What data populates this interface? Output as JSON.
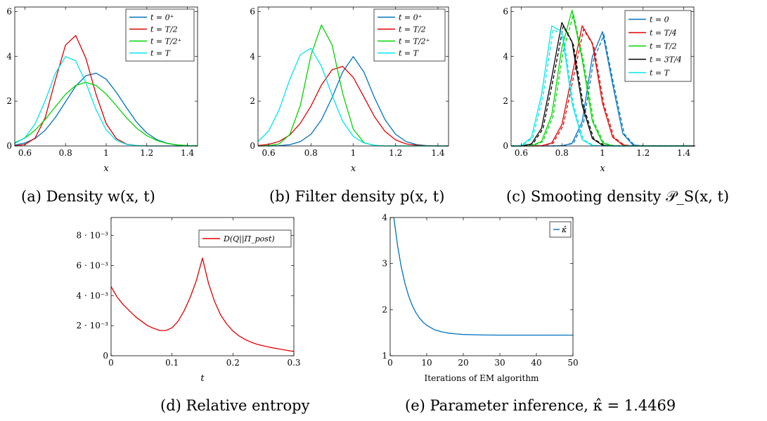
{
  "figure": {
    "captions": [
      "(a) Density w(x, t)",
      "(b) Filter density p(x, t)",
      "(c) Smooting density 𝒫_S(x, t)",
      "(d) Relative entropy",
      "(e) Parameter inference, κ̂ = 1.4469"
    ]
  },
  "chart_data": [
    {
      "type": "line",
      "caption": "(a) Density w(x, t)",
      "xlabel": "x",
      "ylabel": "",
      "xlim": [
        0.55,
        1.45
      ],
      "ylim": [
        0,
        6.2
      ],
      "xticks": [
        "0.6",
        "0.8",
        "1",
        "1.2",
        "1.4"
      ],
      "yticks": [
        "0",
        "2",
        "4",
        "6"
      ],
      "legend_position": "top-right",
      "series": [
        {
          "name": "t = 0⁺",
          "color": "#0072bd",
          "x": [
            0.55,
            0.6,
            0.65,
            0.7,
            0.75,
            0.8,
            0.85,
            0.9,
            0.95,
            1.0,
            1.05,
            1.1,
            1.15,
            1.2,
            1.25,
            1.3,
            1.35,
            1.4,
            1.45
          ],
          "y": [
            0.04,
            0.13,
            0.33,
            0.7,
            1.27,
            1.97,
            2.67,
            3.13,
            3.25,
            2.98,
            2.4,
            1.71,
            1.06,
            0.58,
            0.28,
            0.12,
            0.04,
            0.01,
            0.0
          ]
        },
        {
          "name": "t = T/2",
          "color": "#e00000",
          "x": [
            0.55,
            0.6,
            0.65,
            0.7,
            0.75,
            0.8,
            0.85,
            0.9,
            0.95,
            1.0,
            1.05,
            1.1,
            1.15,
            1.2,
            1.25,
            1.3,
            1.35,
            1.4,
            1.45
          ],
          "y": [
            0.01,
            0.06,
            0.35,
            1.26,
            2.94,
            4.5,
            4.93,
            3.92,
            2.3,
            1.0,
            0.33,
            0.08,
            0.02,
            0.0,
            0.0,
            0.0,
            0.0,
            0.0,
            0.0
          ]
        },
        {
          "name": "t = T/2⁺",
          "color": "#00d400",
          "x": [
            0.55,
            0.6,
            0.65,
            0.7,
            0.75,
            0.8,
            0.85,
            0.9,
            0.95,
            1.0,
            1.05,
            1.1,
            1.15,
            1.2,
            1.25,
            1.3,
            1.35,
            1.4,
            1.45
          ],
          "y": [
            0.15,
            0.35,
            0.7,
            1.18,
            1.75,
            2.3,
            2.7,
            2.84,
            2.7,
            2.32,
            1.8,
            1.26,
            0.8,
            0.46,
            0.24,
            0.11,
            0.05,
            0.02,
            0.01
          ]
        },
        {
          "name": "t = T",
          "color": "#00e5ee",
          "x": [
            0.55,
            0.6,
            0.65,
            0.7,
            0.75,
            0.8,
            0.85,
            0.9,
            0.95,
            1.0,
            1.05,
            1.1,
            1.15,
            1.2,
            1.25,
            1.3,
            1.35,
            1.4,
            1.45
          ],
          "y": [
            0.11,
            0.37,
            0.98,
            2.02,
            3.24,
            3.99,
            3.8,
            2.82,
            1.62,
            0.72,
            0.25,
            0.07,
            0.02,
            0.0,
            0.0,
            0.0,
            0.0,
            0.0,
            0.0
          ]
        }
      ]
    },
    {
      "type": "line",
      "caption": "(b) Filter density p(x, t)",
      "xlabel": "x",
      "ylabel": "",
      "xlim": [
        0.55,
        1.45
      ],
      "ylim": [
        0,
        6.2
      ],
      "xticks": [
        "0.6",
        "0.8",
        "1",
        "1.2",
        "1.4"
      ],
      "yticks": [
        "0",
        "2",
        "4",
        "6"
      ],
      "legend_position": "top-right",
      "series": [
        {
          "name": "t = 0⁺",
          "color": "#0072bd",
          "x": [
            0.55,
            0.6,
            0.65,
            0.7,
            0.75,
            0.8,
            0.85,
            0.9,
            0.95,
            1.0,
            1.05,
            1.1,
            1.15,
            1.2,
            1.25,
            1.3,
            1.35,
            1.4,
            1.45
          ],
          "y": [
            0.0,
            0.0,
            0.01,
            0.06,
            0.19,
            0.52,
            1.17,
            2.16,
            3.3,
            3.99,
            3.3,
            2.16,
            1.17,
            0.52,
            0.19,
            0.06,
            0.01,
            0.0,
            0.0
          ]
        },
        {
          "name": "t = T/2",
          "color": "#e00000",
          "x": [
            0.55,
            0.6,
            0.65,
            0.7,
            0.75,
            0.8,
            0.85,
            0.9,
            0.95,
            1.0,
            1.05,
            1.1,
            1.15,
            1.2,
            1.25,
            1.3,
            1.35,
            1.4,
            1.45
          ],
          "y": [
            0.02,
            0.07,
            0.2,
            0.49,
            1.01,
            1.78,
            2.72,
            3.4,
            3.55,
            3.06,
            2.19,
            1.31,
            0.65,
            0.27,
            0.09,
            0.03,
            0.0,
            0.0,
            0.0
          ]
        },
        {
          "name": "t = T/2⁺",
          "color": "#00d400",
          "x": [
            0.55,
            0.6,
            0.65,
            0.7,
            0.75,
            0.8,
            0.85,
            0.9,
            0.95,
            1.0,
            1.05,
            1.1,
            1.15,
            1.2,
            1.25,
            1.3,
            1.35,
            1.4,
            1.45
          ],
          "y": [
            0.0,
            0.01,
            0.09,
            0.51,
            1.8,
            4.05,
            5.4,
            4.5,
            2.35,
            0.75,
            0.15,
            0.02,
            0.0,
            0.0,
            0.0,
            0.0,
            0.0,
            0.0,
            0.0
          ]
        },
        {
          "name": "t = T",
          "color": "#00e5ee",
          "x": [
            0.55,
            0.6,
            0.65,
            0.7,
            0.75,
            0.8,
            0.85,
            0.9,
            0.95,
            1.0,
            1.05,
            1.1,
            1.15,
            1.2,
            1.25,
            1.3,
            1.35,
            1.4,
            1.45
          ],
          "y": [
            0.2,
            0.66,
            1.62,
            2.97,
            4.07,
            4.36,
            3.55,
            2.26,
            1.1,
            0.43,
            0.13,
            0.03,
            0.0,
            0.0,
            0.0,
            0.0,
            0.0,
            0.0,
            0.0
          ]
        }
      ]
    },
    {
      "type": "line",
      "caption": "(c) Smooting density 𝒫_S(x, t)",
      "xlabel": "x",
      "ylabel": "",
      "xlim": [
        0.55,
        1.45
      ],
      "ylim": [
        0,
        6.2
      ],
      "xticks": [
        "0.6",
        "0.8",
        "1",
        "1.2",
        "1.4"
      ],
      "yticks": [
        "0",
        "2",
        "4",
        "6"
      ],
      "legend_position": "top-right",
      "note_dashed": "each series drawn twice: solid and dashed (nearly coincident)",
      "series": [
        {
          "name": "t = 0",
          "color": "#0072bd",
          "x": [
            0.55,
            0.6,
            0.65,
            0.7,
            0.75,
            0.8,
            0.85,
            0.9,
            0.95,
            1.0,
            1.05,
            1.1,
            1.15,
            1.2,
            1.25,
            1.3,
            1.35,
            1.4,
            1.45
          ],
          "y": [
            0.0,
            0.0,
            0.0,
            0.0,
            0.0,
            0.01,
            0.12,
            1.08,
            3.98,
            5.1,
            2.76,
            0.55,
            0.04,
            0.0,
            0.0,
            0.0,
            0.0,
            0.0,
            0.0
          ]
        },
        {
          "name": "t = T/4",
          "color": "#e00000",
          "x": [
            0.55,
            0.6,
            0.65,
            0.7,
            0.75,
            0.8,
            0.85,
            0.9,
            0.95,
            1.0,
            1.05,
            1.1,
            1.15,
            1.2,
            1.25,
            1.3,
            1.35,
            1.4,
            1.45
          ],
          "y": [
            0.0,
            0.0,
            0.0,
            0.01,
            0.13,
            0.95,
            3.16,
            5.36,
            4.59,
            1.91,
            0.39,
            0.04,
            0.0,
            0.0,
            0.0,
            0.0,
            0.0,
            0.0,
            0.0
          ]
        },
        {
          "name": "t = T/2",
          "color": "#00d400",
          "x": [
            0.55,
            0.6,
            0.65,
            0.7,
            0.75,
            0.8,
            0.85,
            0.9,
            0.95,
            1.0,
            1.05,
            1.1,
            1.15,
            1.2,
            1.25,
            1.3,
            1.35,
            1.4,
            1.45
          ],
          "y": [
            0.0,
            0.0,
            0.01,
            0.2,
            1.38,
            4.38,
            6.06,
            3.87,
            1.11,
            0.13,
            0.01,
            0.0,
            0.0,
            0.0,
            0.0,
            0.0,
            0.0,
            0.0,
            0.0
          ]
        },
        {
          "name": "t = 3T/4",
          "color": "#000000",
          "x": [
            0.55,
            0.6,
            0.65,
            0.7,
            0.75,
            0.8,
            0.85,
            0.9,
            0.95,
            1.0,
            1.05,
            1.1,
            1.15,
            1.2,
            1.25,
            1.3,
            1.35,
            1.4,
            1.45
          ],
          "y": [
            0.0,
            0.0,
            0.09,
            0.79,
            3.05,
            5.51,
            4.65,
            1.82,
            0.33,
            0.03,
            0.0,
            0.0,
            0.0,
            0.0,
            0.0,
            0.0,
            0.0,
            0.0,
            0.0
          ]
        },
        {
          "name": "t = T",
          "color": "#00e5ee",
          "x": [
            0.55,
            0.6,
            0.65,
            0.7,
            0.75,
            0.8,
            0.85,
            0.9,
            0.95,
            1.0,
            1.05,
            1.1,
            1.15,
            1.2,
            1.25,
            1.3,
            1.35,
            1.4,
            1.45
          ],
          "y": [
            0.0,
            0.02,
            0.38,
            2.28,
            5.36,
            5.1,
            1.9,
            0.28,
            0.02,
            0.0,
            0.0,
            0.0,
            0.0,
            0.0,
            0.0,
            0.0,
            0.0,
            0.0,
            0.0
          ]
        }
      ]
    },
    {
      "type": "line",
      "caption": "(d) Relative entropy",
      "xlabel": "t",
      "ylabel": "",
      "xlim": [
        0,
        0.3
      ],
      "ylim": [
        0,
        0.0092
      ],
      "xticks": [
        "0",
        "0.1",
        "0.2",
        "0.3"
      ],
      "yticks": [
        "0",
        "2 · 10⁻³",
        "4 · 10⁻³",
        "6 · 10⁻³",
        "8 · 10⁻³"
      ],
      "legend_position": "top-right",
      "series": [
        {
          "name": "D(Q||Π_post)",
          "color": "#e00000",
          "x": [
            0,
            0.01,
            0.02,
            0.03,
            0.04,
            0.05,
            0.06,
            0.07,
            0.08,
            0.09,
            0.1,
            0.11,
            0.12,
            0.13,
            0.14,
            0.15,
            0.16,
            0.17,
            0.18,
            0.19,
            0.2,
            0.21,
            0.22,
            0.23,
            0.24,
            0.25,
            0.26,
            0.27,
            0.28,
            0.29,
            0.3
          ],
          "y": [
            0.0046,
            0.0039,
            0.0034,
            0.003,
            0.0026,
            0.0023,
            0.002,
            0.00182,
            0.00168,
            0.00168,
            0.00186,
            0.0023,
            0.003,
            0.0039,
            0.005,
            0.0065,
            0.0048,
            0.0036,
            0.0027,
            0.0021,
            0.00165,
            0.00132,
            0.00108,
            0.0009,
            0.00076,
            0.00066,
            0.00057,
            0.00049,
            0.00042,
            0.00035,
            0.00029
          ]
        }
      ]
    },
    {
      "type": "line",
      "caption": "(e) Parameter inference, κ̂ = 1.4469",
      "xlabel": "Iterations of EM algorithm",
      "ylabel": "",
      "xlim": [
        0,
        50
      ],
      "ylim": [
        1,
        4
      ],
      "xticks": [
        "0",
        "10",
        "20",
        "30",
        "40",
        "50"
      ],
      "yticks": [
        "1",
        "2",
        "3",
        "4"
      ],
      "legend_position": "top-right",
      "series": [
        {
          "name": "κ̂",
          "color": "#0072bd",
          "x": [
            1,
            2,
            3,
            4,
            5,
            6,
            7,
            8,
            9,
            10,
            12,
            14,
            16,
            18,
            20,
            25,
            30,
            35,
            40,
            45,
            50
          ],
          "y": [
            4.0,
            3.4,
            2.94,
            2.58,
            2.31,
            2.1,
            1.94,
            1.82,
            1.73,
            1.66,
            1.57,
            1.52,
            1.49,
            1.474,
            1.462,
            1.451,
            1.448,
            1.447,
            1.447,
            1.447,
            1.447
          ]
        }
      ]
    }
  ]
}
